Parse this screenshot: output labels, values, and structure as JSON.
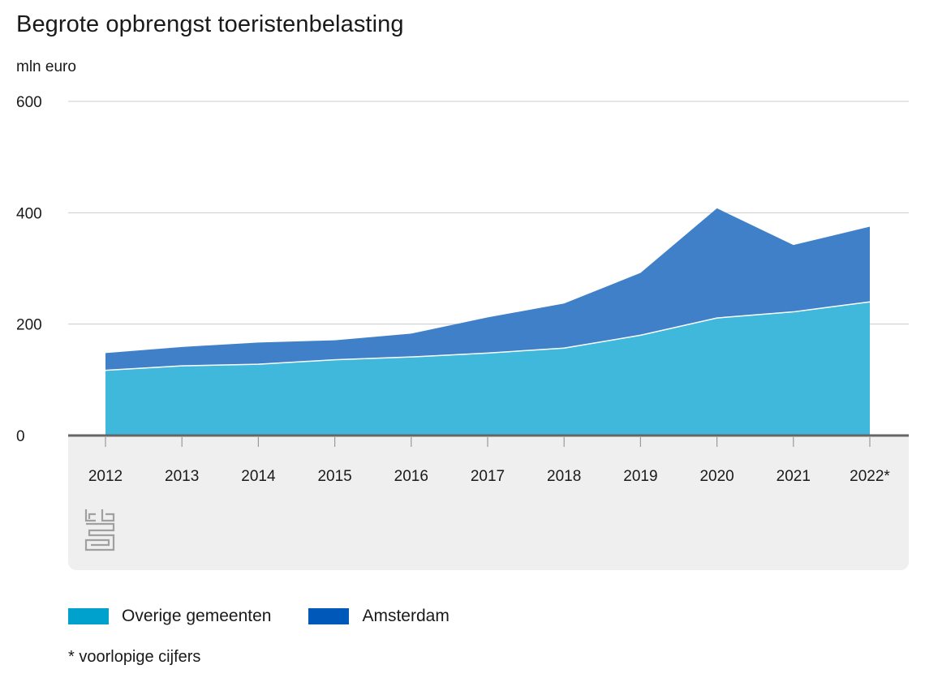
{
  "chart_data": {
    "type": "area",
    "stacked": true,
    "title": "Begrote opbrengst toeristenbelasting",
    "ylabel": "mln euro",
    "xlabel": "",
    "categories": [
      "2012",
      "2013",
      "2014",
      "2015",
      "2016",
      "2017",
      "2018",
      "2019",
      "2020",
      "2021",
      "2022*"
    ],
    "ylim": [
      0,
      600
    ],
    "yticks": [
      "0",
      "200",
      "400",
      "600"
    ],
    "grid": true,
    "legend_position": "bottom-left",
    "series": [
      {
        "name": "Overige gemeenten",
        "color": "#3fb8dc",
        "swatch_color": "#00a1cd",
        "values": [
          117,
          125,
          128,
          136,
          141,
          148,
          157,
          180,
          211,
          222,
          240
        ]
      },
      {
        "name": "Amsterdam",
        "color": "#3f80c8",
        "swatch_color": "#0058b8",
        "values": [
          31,
          34,
          39,
          35,
          42,
          64,
          80,
          112,
          197,
          120,
          135
        ]
      }
    ],
    "footnote": "* voorlopige cijfers"
  }
}
